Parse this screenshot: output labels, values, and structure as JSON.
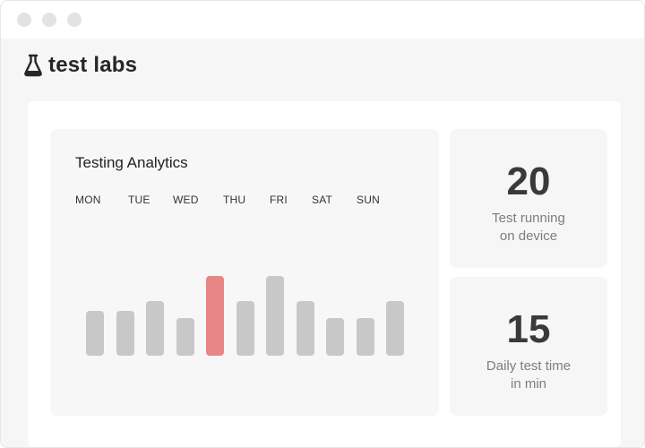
{
  "brand": {
    "name": "test labs",
    "logo_icon": "flask-icon"
  },
  "window": {
    "controls": [
      "close",
      "minimize",
      "maximize"
    ]
  },
  "analytics": {
    "title": "Testing Analytics",
    "days": [
      "MON",
      "TUE",
      "WED",
      "THU",
      "FRI",
      "SAT",
      "SUN"
    ],
    "bar_levels": [
      0.48,
      0.48,
      0.58,
      0.4,
      0.85,
      0.58,
      0.85,
      0.58,
      0.4,
      0.4,
      0.58
    ],
    "highlight_index": 4,
    "colors": {
      "bar": "#c8c8c8",
      "highlight": "#e88585"
    }
  },
  "stats": [
    {
      "value": "20",
      "label_line1": "Test running",
      "label_line2": "on device"
    },
    {
      "value": "15",
      "label_line1": "Daily test time",
      "label_line2": "in min"
    }
  ]
}
